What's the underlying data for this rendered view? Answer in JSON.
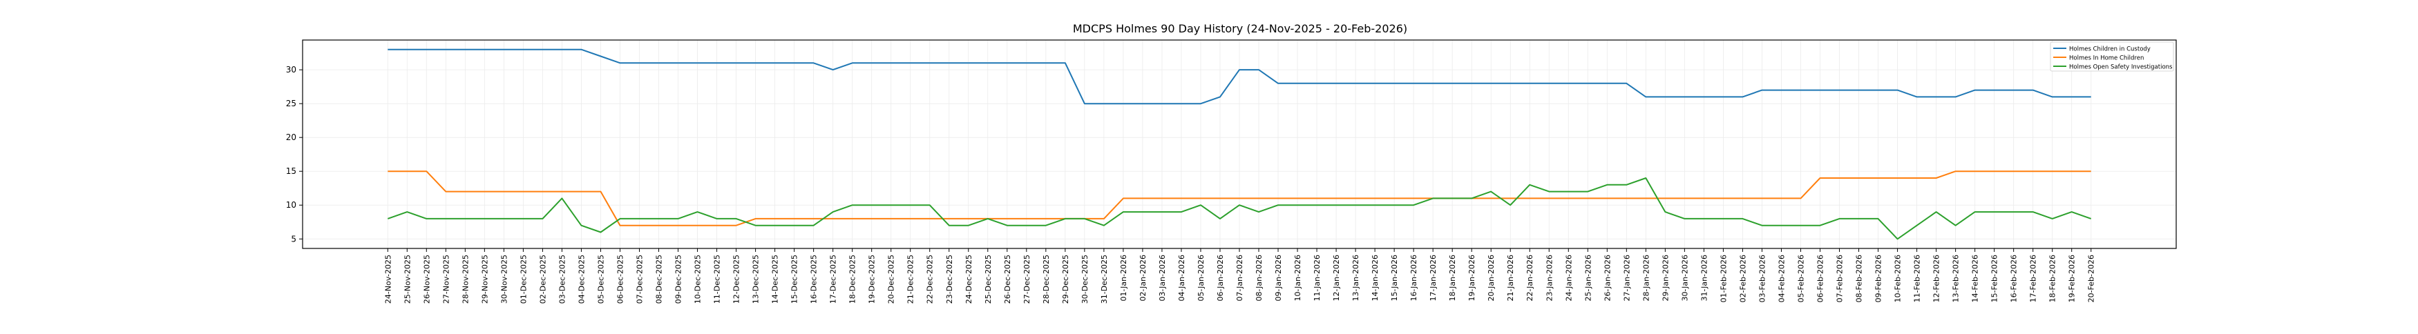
{
  "chart_data": {
    "type": "line",
    "title": "MDCPS Holmes 90 Day History (24-Nov-2025 - 20-Feb-2026)",
    "xlabel": "",
    "ylabel": "",
    "ylim": [
      3.6,
      34.4
    ],
    "yticks": [
      5,
      10,
      15,
      20,
      25,
      30
    ],
    "grid": true,
    "legend_position": "top-right",
    "categories": [
      "24-Nov-2025",
      "25-Nov-2025",
      "26-Nov-2025",
      "27-Nov-2025",
      "28-Nov-2025",
      "29-Nov-2025",
      "30-Nov-2025",
      "01-Dec-2025",
      "02-Dec-2025",
      "03-Dec-2025",
      "04-Dec-2025",
      "05-Dec-2025",
      "06-Dec-2025",
      "07-Dec-2025",
      "08-Dec-2025",
      "09-Dec-2025",
      "10-Dec-2025",
      "11-Dec-2025",
      "12-Dec-2025",
      "13-Dec-2025",
      "14-Dec-2025",
      "15-Dec-2025",
      "16-Dec-2025",
      "17-Dec-2025",
      "18-Dec-2025",
      "19-Dec-2025",
      "20-Dec-2025",
      "21-Dec-2025",
      "22-Dec-2025",
      "23-Dec-2025",
      "24-Dec-2025",
      "25-Dec-2025",
      "26-Dec-2025",
      "27-Dec-2025",
      "28-Dec-2025",
      "29-Dec-2025",
      "30-Dec-2025",
      "31-Dec-2025",
      "01-Jan-2026",
      "02-Jan-2026",
      "03-Jan-2026",
      "04-Jan-2026",
      "05-Jan-2026",
      "06-Jan-2026",
      "07-Jan-2026",
      "08-Jan-2026",
      "09-Jan-2026",
      "10-Jan-2026",
      "11-Jan-2026",
      "12-Jan-2026",
      "13-Jan-2026",
      "14-Jan-2026",
      "15-Jan-2026",
      "16-Jan-2026",
      "17-Jan-2026",
      "18-Jan-2026",
      "19-Jan-2026",
      "20-Jan-2026",
      "21-Jan-2026",
      "22-Jan-2026",
      "23-Jan-2026",
      "24-Jan-2026",
      "25-Jan-2026",
      "26-Jan-2026",
      "27-Jan-2026",
      "28-Jan-2026",
      "29-Jan-2026",
      "30-Jan-2026",
      "31-Jan-2026",
      "01-Feb-2026",
      "02-Feb-2026",
      "03-Feb-2026",
      "04-Feb-2026",
      "05-Feb-2026",
      "06-Feb-2026",
      "07-Feb-2026",
      "08-Feb-2026",
      "09-Feb-2026",
      "10-Feb-2026",
      "11-Feb-2026",
      "12-Feb-2026",
      "13-Feb-2026",
      "14-Feb-2026",
      "15-Feb-2026",
      "16-Feb-2026",
      "17-Feb-2026",
      "18-Feb-2026",
      "19-Feb-2026",
      "20-Feb-2026"
    ],
    "series": [
      {
        "name": "Holmes Children in Custody",
        "color": "#1f77b4",
        "values": [
          33,
          33,
          33,
          33,
          33,
          33,
          33,
          33,
          33,
          33,
          33,
          32,
          31,
          31,
          31,
          31,
          31,
          31,
          31,
          31,
          31,
          31,
          31,
          30,
          31,
          31,
          31,
          31,
          31,
          31,
          31,
          31,
          31,
          31,
          31,
          31,
          25,
          25,
          25,
          25,
          25,
          25,
          25,
          26,
          30,
          30,
          28,
          28,
          28,
          28,
          28,
          28,
          28,
          28,
          28,
          28,
          28,
          28,
          28,
          28,
          28,
          28,
          28,
          28,
          28,
          26,
          26,
          26,
          26,
          26,
          26,
          27,
          27,
          27,
          27,
          27,
          27,
          27,
          27,
          26,
          26,
          26,
          27,
          27,
          27,
          27,
          26,
          26,
          26
        ]
      },
      {
        "name": "Holmes In Home Children",
        "color": "#ff7f0e",
        "values": [
          15,
          15,
          15,
          12,
          12,
          12,
          12,
          12,
          12,
          12,
          12,
          12,
          7,
          7,
          7,
          7,
          7,
          7,
          7,
          8,
          8,
          8,
          8,
          8,
          8,
          8,
          8,
          8,
          8,
          8,
          8,
          8,
          8,
          8,
          8,
          8,
          8,
          8,
          11,
          11,
          11,
          11,
          11,
          11,
          11,
          11,
          11,
          11,
          11,
          11,
          11,
          11,
          11,
          11,
          11,
          11,
          11,
          11,
          11,
          11,
          11,
          11,
          11,
          11,
          11,
          11,
          11,
          11,
          11,
          11,
          11,
          11,
          11,
          11,
          14,
          14,
          14,
          14,
          14,
          14,
          14,
          15,
          15,
          15,
          15,
          15,
          15,
          15,
          15
        ]
      },
      {
        "name": "Holmes Open Safety Investigations",
        "color": "#2ca02c",
        "values": [
          8,
          9,
          8,
          8,
          8,
          8,
          8,
          8,
          8,
          11,
          7,
          6,
          8,
          8,
          8,
          8,
          9,
          8,
          8,
          7,
          7,
          7,
          7,
          9,
          10,
          10,
          10,
          10,
          10,
          7,
          7,
          8,
          7,
          7,
          7,
          8,
          8,
          7,
          9,
          9,
          9,
          9,
          10,
          8,
          10,
          9,
          10,
          10,
          10,
          10,
          10,
          10,
          10,
          10,
          11,
          11,
          11,
          12,
          10,
          13,
          12,
          12,
          12,
          13,
          13,
          14,
          9,
          8,
          8,
          8,
          8,
          7,
          7,
          7,
          7,
          8,
          8,
          8,
          5,
          7,
          9,
          7,
          9,
          9,
          9,
          9,
          8,
          9,
          8
        ]
      }
    ]
  }
}
